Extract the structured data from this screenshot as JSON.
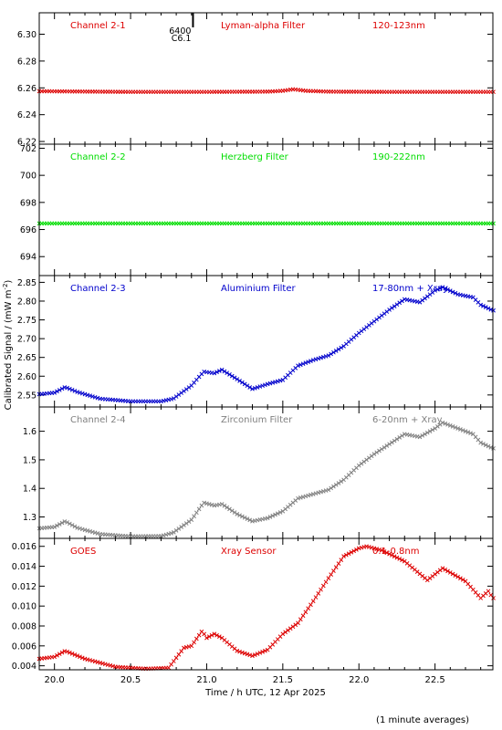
{
  "figure": {
    "ylabel": "Calibrated Signal / (mW m",
    "ylabel_exp": "-2",
    "ylabel_close": ")",
    "xlabel": "Time / h UTC, 12 Apr 2025",
    "footnote": "(1 minute averages)",
    "flare_marker": {
      "x": 20.91,
      "label_top": "6400",
      "label_bottom": "C6.1"
    }
  },
  "chart_data": [
    {
      "type": "scatter",
      "title": "Channel 2-1",
      "filter": "Lyman-alpha Filter",
      "band": "120-123nm",
      "color": "#dd0000",
      "x_range": [
        19.9,
        22.88
      ],
      "ylim": [
        6.218,
        6.316
      ],
      "yticks": [
        "6.22",
        "6.24",
        "6.26",
        "6.28",
        "6.30"
      ],
      "series": [
        {
          "x": [
            19.9,
            20.5,
            21.0,
            21.4,
            21.5,
            21.57,
            21.65,
            21.8,
            22.2,
            22.88
          ],
          "y": [
            6.2575,
            6.257,
            6.257,
            6.2572,
            6.2578,
            6.259,
            6.2578,
            6.2572,
            6.257,
            6.257
          ]
        }
      ]
    },
    {
      "type": "scatter",
      "title": "Channel 2-2",
      "filter": "Herzberg Filter",
      "band": "190-222nm",
      "color": "#00dd00",
      "x_range": [
        19.9,
        22.88
      ],
      "ylim": [
        692.6,
        702.3
      ],
      "yticks": [
        "694",
        "696",
        "698",
        "700",
        "702"
      ],
      "series": [
        {
          "x": [
            19.9,
            20.5,
            21.0,
            21.5,
            22.0,
            22.5,
            22.88
          ],
          "y": [
            696.45,
            696.45,
            696.45,
            696.45,
            696.45,
            696.45,
            696.45
          ]
        }
      ]
    },
    {
      "type": "scatter",
      "title": "Channel 2-3",
      "filter": "Aluminium Filter",
      "band": "17-80nm + Xray",
      "color": "#0000cc",
      "x_range": [
        19.9,
        22.88
      ],
      "ylim": [
        2.518,
        2.868
      ],
      "yticks": [
        "2.55",
        "2.60",
        "2.65",
        "2.70",
        "2.75",
        "2.80",
        "2.85"
      ],
      "series": [
        {
          "x": [
            19.9,
            20.0,
            20.07,
            20.15,
            20.3,
            20.5,
            20.7,
            20.78,
            20.9,
            20.98,
            21.05,
            21.1,
            21.2,
            21.3,
            21.4,
            21.5,
            21.6,
            21.7,
            21.8,
            21.9,
            22.0,
            22.1,
            22.2,
            22.3,
            22.4,
            22.5,
            22.55,
            22.65,
            22.75,
            22.8,
            22.88
          ],
          "y": [
            2.552,
            2.556,
            2.571,
            2.558,
            2.54,
            2.533,
            2.533,
            2.54,
            2.575,
            2.612,
            2.608,
            2.617,
            2.592,
            2.566,
            2.579,
            2.59,
            2.628,
            2.643,
            2.655,
            2.68,
            2.715,
            2.746,
            2.777,
            2.805,
            2.797,
            2.828,
            2.837,
            2.818,
            2.81,
            2.79,
            2.775
          ]
        }
      ]
    },
    {
      "type": "scatter",
      "title": "Channel 2-4",
      "filter": "Zirconium Filter",
      "band": "6-20nm + Xray",
      "color": "#808080",
      "x_range": [
        19.9,
        22.88
      ],
      "ylim": [
        1.225,
        1.685
      ],
      "yticks": [
        "1.3",
        "1.4",
        "1.5",
        "1.6"
      ],
      "series": [
        {
          "x": [
            19.9,
            20.0,
            20.07,
            20.15,
            20.3,
            20.5,
            20.7,
            20.78,
            20.9,
            20.98,
            21.05,
            21.1,
            21.2,
            21.3,
            21.4,
            21.5,
            21.6,
            21.7,
            21.8,
            21.9,
            22.0,
            22.1,
            22.2,
            22.3,
            22.4,
            22.5,
            22.55,
            22.65,
            22.75,
            22.8,
            22.88
          ],
          "y": [
            1.26,
            1.265,
            1.285,
            1.262,
            1.24,
            1.232,
            1.233,
            1.245,
            1.29,
            1.35,
            1.34,
            1.345,
            1.31,
            1.285,
            1.296,
            1.32,
            1.365,
            1.38,
            1.395,
            1.43,
            1.48,
            1.52,
            1.555,
            1.59,
            1.58,
            1.61,
            1.63,
            1.61,
            1.59,
            1.56,
            1.54
          ]
        }
      ]
    },
    {
      "type": "scatter",
      "title": "GOES",
      "filter": "Xray Sensor",
      "band": "0.1-0.8nm",
      "color": "#dd0000",
      "x_range": [
        19.9,
        22.88
      ],
      "ylim": [
        0.0036,
        0.0168
      ],
      "yticks": [
        "0.004",
        "0.006",
        "0.008",
        "0.010",
        "0.012",
        "0.014",
        "0.016"
      ],
      "xticks": [
        "20.0",
        "20.5",
        "21.0",
        "21.5",
        "22.0",
        "22.5"
      ],
      "series": [
        {
          "x": [
            19.9,
            20.0,
            20.07,
            20.2,
            20.4,
            20.6,
            20.75,
            20.85,
            20.9,
            20.97,
            21.0,
            21.05,
            21.1,
            21.2,
            21.3,
            21.4,
            21.5,
            21.6,
            21.7,
            21.8,
            21.9,
            22.0,
            22.05,
            22.15,
            22.3,
            22.45,
            22.55,
            22.7,
            22.8,
            22.85,
            22.88
          ],
          "y": [
            0.0047,
            0.0049,
            0.0055,
            0.0047,
            0.0039,
            0.0037,
            0.0038,
            0.0058,
            0.006,
            0.0075,
            0.0068,
            0.0072,
            0.0068,
            0.0055,
            0.005,
            0.0056,
            0.0072,
            0.0083,
            0.0105,
            0.0128,
            0.015,
            0.0158,
            0.016,
            0.0156,
            0.0145,
            0.0126,
            0.0138,
            0.0125,
            0.0108,
            0.0115,
            0.0108
          ]
        }
      ]
    }
  ]
}
